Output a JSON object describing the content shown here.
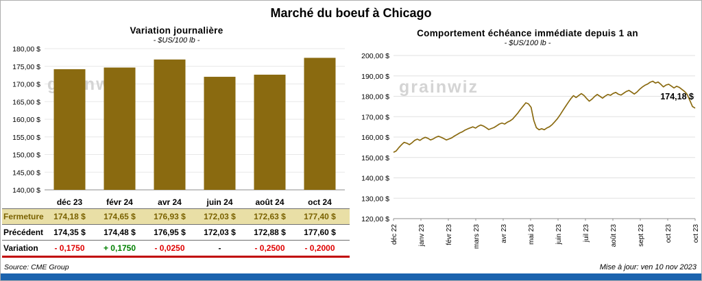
{
  "page_title": "Marché du boeuf à Chicago",
  "watermark": "grainwiz",
  "colors": {
    "brand_gold": "#8a6a10",
    "highlight_row": "#e9dfa6",
    "neg": "#e00000",
    "pos": "#008000",
    "flat": "#000000",
    "accent_bar": "#1b63ae"
  },
  "chart_data": [
    {
      "type": "bar",
      "title": "Variation  journalière",
      "subtitle": "- $US/100 lb -",
      "categories": [
        "déc 23",
        "févr 24",
        "avr 24",
        "juin 24",
        "août 24",
        "oct 24"
      ],
      "values": [
        174.18,
        174.65,
        176.93,
        172.03,
        172.63,
        177.4
      ],
      "ylabel": "$US/100 lb",
      "ylim": [
        140,
        180
      ],
      "ytick_step": 5,
      "grid": true,
      "bar_color": "#8a6a10"
    },
    {
      "type": "line",
      "title": "Comportement  échéance  immédiate  depuis 1 an",
      "subtitle": "- $US/100 lb -",
      "x_labels": [
        "déc 22",
        "janv 23",
        "févr 23",
        "mars 23",
        "avr 23",
        "mai 23",
        "juin 23",
        "juil 23",
        "août 23",
        "sept 23",
        "oct 23",
        "oct 23"
      ],
      "values": [
        152.5,
        153.2,
        154.8,
        156.2,
        157.4,
        157.0,
        156.3,
        157.2,
        158.4,
        159.0,
        158.4,
        159.3,
        159.9,
        159.4,
        158.6,
        159.1,
        159.9,
        160.4,
        159.9,
        159.3,
        158.6,
        159.1,
        159.6,
        160.5,
        161.2,
        162.0,
        162.6,
        163.4,
        164.0,
        164.5,
        165.0,
        164.4,
        165.3,
        165.9,
        165.4,
        164.6,
        163.7,
        164.2,
        164.7,
        165.5,
        166.4,
        166.9,
        166.4,
        167.3,
        167.9,
        168.8,
        170.3,
        171.8,
        173.6,
        175.2,
        176.8,
        176.3,
        174.6,
        168.2,
        164.6,
        163.6,
        164.1,
        163.6,
        164.5,
        165.1,
        166.2,
        167.6,
        169.1,
        171.0,
        173.0,
        175.0,
        176.9,
        178.8,
        180.3,
        179.4,
        180.4,
        181.3,
        180.4,
        178.9,
        177.6,
        178.6,
        179.9,
        180.9,
        180.0,
        179.1,
        180.1,
        180.9,
        180.5,
        181.4,
        181.9,
        181.0,
        180.6,
        181.5,
        182.4,
        182.9,
        182.0,
        181.1,
        182.1,
        183.4,
        184.5,
        185.4,
        186.0,
        186.9,
        187.4,
        186.5,
        187.0,
        185.9,
        184.6,
        185.5,
        185.9,
        185.0,
        184.1,
        184.9,
        184.4,
        183.4,
        182.4,
        180.9,
        178.0,
        175.0,
        174.18
      ],
      "ylim": [
        120,
        200
      ],
      "ytick_step": 10,
      "grid": true,
      "line_color": "#8a6a10",
      "end_label": "174,18 $"
    }
  ],
  "table": {
    "months": [
      "déc 23",
      "févr 24",
      "avr 24",
      "juin 24",
      "août 24",
      "oct 24"
    ],
    "rows": [
      {
        "label": "Fermeture",
        "style": "close",
        "values": [
          "174,18  $",
          "174,65  $",
          "176,93  $",
          "172,03  $",
          "172,63  $",
          "177,40  $"
        ]
      },
      {
        "label": "Précédent",
        "style": "previous",
        "values": [
          "174,35  $",
          "174,48  $",
          "176,95  $",
          "172,03  $",
          "172,88  $",
          "177,60  $"
        ]
      },
      {
        "label": "Variation",
        "style": "variation",
        "values": [
          "- 0,1750",
          "+ 0,1750",
          "- 0,0250",
          "-",
          "- 0,2500",
          "- 0,2000"
        ],
        "value_colors": [
          "neg",
          "pos",
          "neg",
          "flat",
          "neg",
          "neg"
        ]
      }
    ]
  },
  "footer": {
    "source": "Source: CME Group",
    "updated": "Mise à jour: ven 10 nov 2023"
  }
}
